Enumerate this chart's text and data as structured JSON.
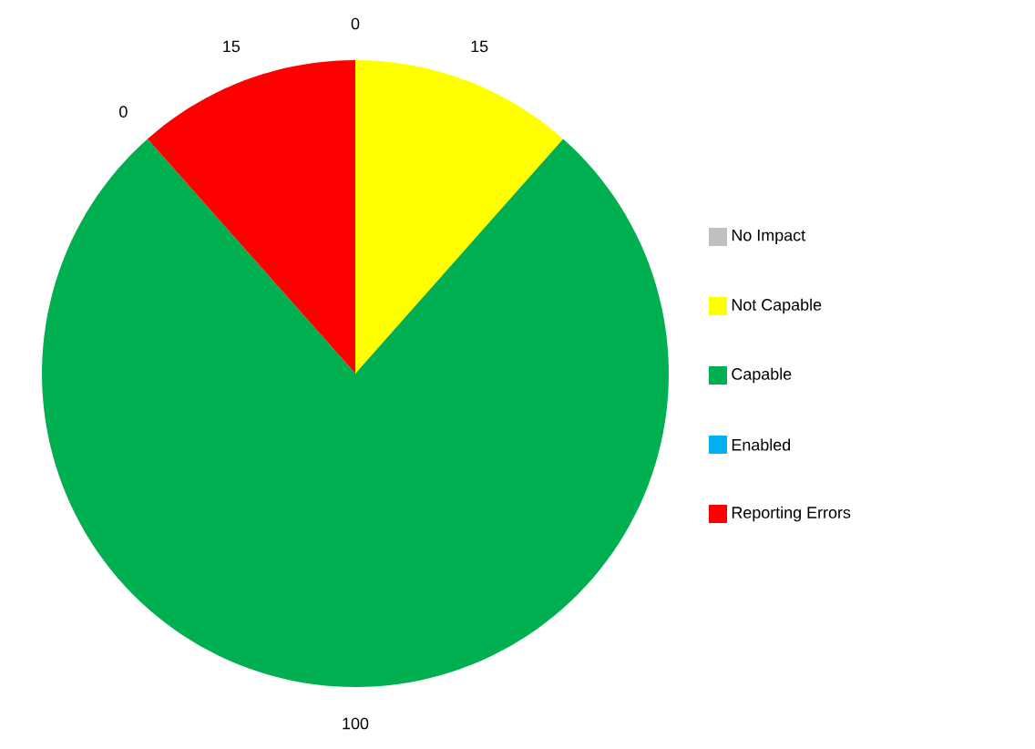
{
  "chart_data": {
    "type": "pie",
    "categories": [
      "No Impact",
      "Not Capable",
      "Capable",
      "Enabled",
      "Reporting Errors"
    ],
    "values": [
      0,
      15,
      100,
      0,
      15
    ],
    "colors": [
      "#bfbfbf",
      "#ffff00",
      "#00b050",
      "#00b0f0",
      "#ff0000"
    ],
    "value_labels": [
      "0",
      "15",
      "100",
      "0",
      "15"
    ],
    "legend": "right"
  }
}
